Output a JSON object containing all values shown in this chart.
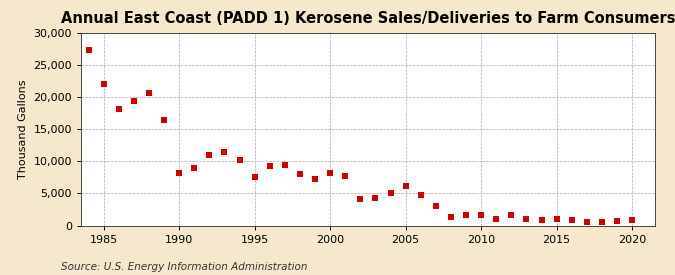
{
  "title": "Annual East Coast (PADD 1) Kerosene Sales/Deliveries to Farm Consumers",
  "ylabel": "Thousand Gallons",
  "source": "Source: U.S. Energy Information Administration",
  "background_color": "#f5e8cc",
  "plot_background_color": "#ffffff",
  "marker_color": "#cc0000",
  "years": [
    1984,
    1985,
    1986,
    1987,
    1988,
    1989,
    1990,
    1991,
    1992,
    1993,
    1994,
    1995,
    1996,
    1997,
    1998,
    1999,
    2000,
    2001,
    2002,
    2003,
    2004,
    2005,
    2006,
    2007,
    2008,
    2009,
    2010,
    2011,
    2012,
    2013,
    2014,
    2015,
    2016,
    2017,
    2018,
    2019,
    2020
  ],
  "values": [
    27300,
    22000,
    18100,
    19400,
    20700,
    16400,
    8200,
    8900,
    11000,
    11500,
    10200,
    7500,
    9300,
    9500,
    8000,
    7300,
    8200,
    7700,
    4200,
    4300,
    5000,
    6200,
    4800,
    3100,
    1400,
    1700,
    1700,
    1000,
    1600,
    1000,
    800,
    1000,
    800,
    500,
    500,
    700,
    800
  ],
  "ylim": [
    0,
    30000
  ],
  "yticks": [
    0,
    5000,
    10000,
    15000,
    20000,
    25000,
    30000
  ],
  "xlim": [
    1983.5,
    2021.5
  ],
  "xticks": [
    1985,
    1990,
    1995,
    2000,
    2005,
    2010,
    2015,
    2020
  ],
  "title_fontsize": 10.5,
  "ylabel_fontsize": 8,
  "tick_fontsize": 8,
  "source_fontsize": 7.5,
  "marker_size": 16
}
